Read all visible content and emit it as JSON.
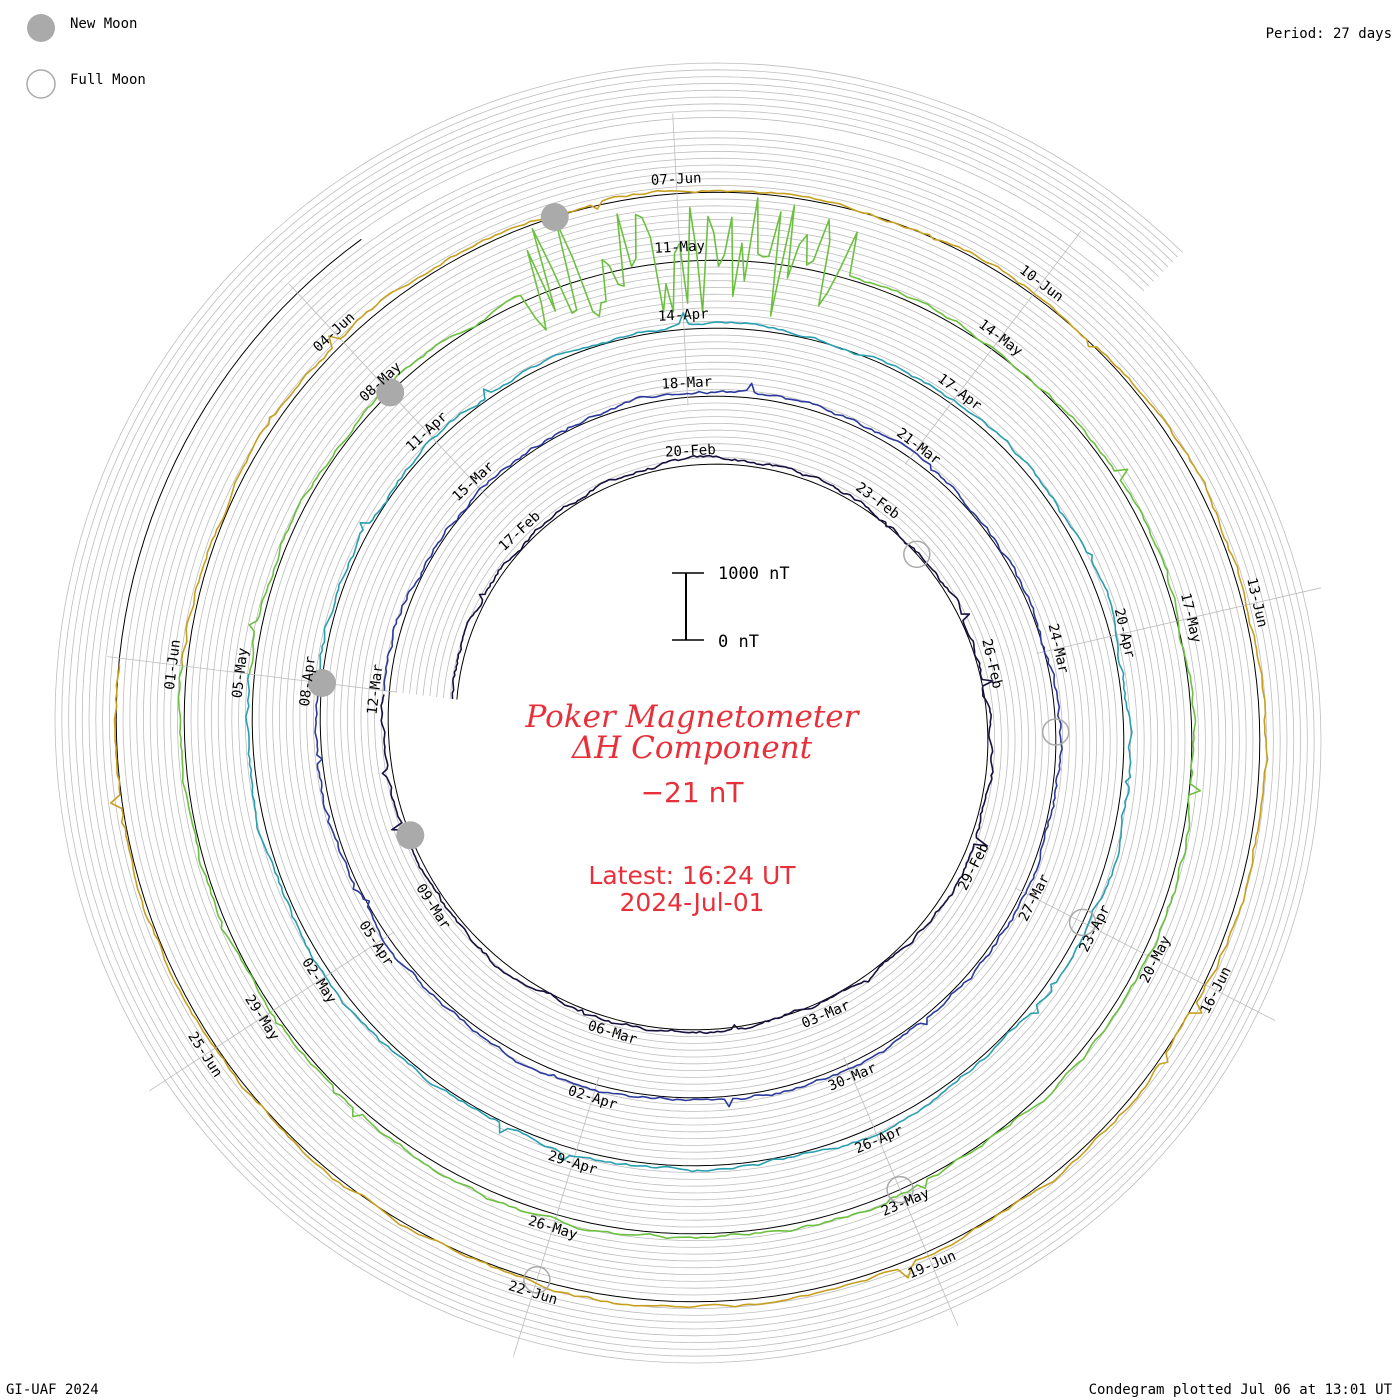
{
  "header": {
    "legend_new_moon": "New Moon",
    "legend_full_moon": "Full Moon",
    "period": "Period: 27 days"
  },
  "footer": {
    "left": "GI-UAF 2024",
    "right": "Condegram plotted Jul 06 at 13:01 UT"
  },
  "center": {
    "title_line1": "Poker Magnetometer",
    "title_line2": "ΔH Component",
    "current_value": "−21 nT",
    "latest_time": "Latest: 16:24 UT",
    "latest_date": "2024-Jul-01",
    "scale_top": "1000 nT",
    "scale_bottom": "0 nT"
  },
  "colors": {
    "new_moon": "#aaaaaa",
    "full_moon": "#aaaaaa",
    "title": "#e8303a",
    "guide": "#bdbdbd"
  },
  "chart_data": {
    "type": "line",
    "subtype": "condegram-spiral",
    "period_days": 27,
    "units": "nT",
    "scale_bar_nT": [
      0,
      1000
    ],
    "start_date": "2024-02-14",
    "end_date": "2024-07-01",
    "series": [
      {
        "turn": 1,
        "color": "#1a1040",
        "labels": [
          "17-Feb",
          "20-Feb",
          "23-Feb",
          "26-Feb",
          "29-Feb",
          "03-Mar",
          "06-Mar",
          "09-Mar",
          "12-Mar"
        ]
      },
      {
        "turn": 2,
        "color": "#2b3a9c",
        "labels": [
          "15-Mar",
          "18-Mar",
          "21-Mar",
          "24-Mar",
          "27-Mar",
          "30-Mar",
          "02-Apr",
          "05-Apr",
          "08-Apr"
        ]
      },
      {
        "turn": 3,
        "color": "#2a9fb0",
        "labels": [
          "11-Apr",
          "14-Apr",
          "17-Apr",
          "20-Apr",
          "23-Apr",
          "26-Apr",
          "29-Apr",
          "02-May",
          "05-May"
        ]
      },
      {
        "turn": 4,
        "color": "#6cc040",
        "labels": [
          "08-May",
          "11-May",
          "14-May",
          "17-May",
          "20-May",
          "23-May",
          "26-May",
          "29-May",
          "01-Jun"
        ]
      },
      {
        "turn": 5,
        "color": "#c8a020",
        "labels": [
          "04-Jun",
          "07-Jun",
          "10-Jun",
          "13-Jun",
          "16-Jun",
          "19-Jun",
          "22-Jun",
          "25-Jun"
        ]
      }
    ],
    "new_moons": [
      "2024-03-10",
      "2024-04-08",
      "2024-05-08",
      "2024-06-06"
    ],
    "full_moons": [
      "2024-02-24",
      "2024-03-25",
      "2024-04-23",
      "2024-05-23",
      "2024-06-22"
    ]
  }
}
